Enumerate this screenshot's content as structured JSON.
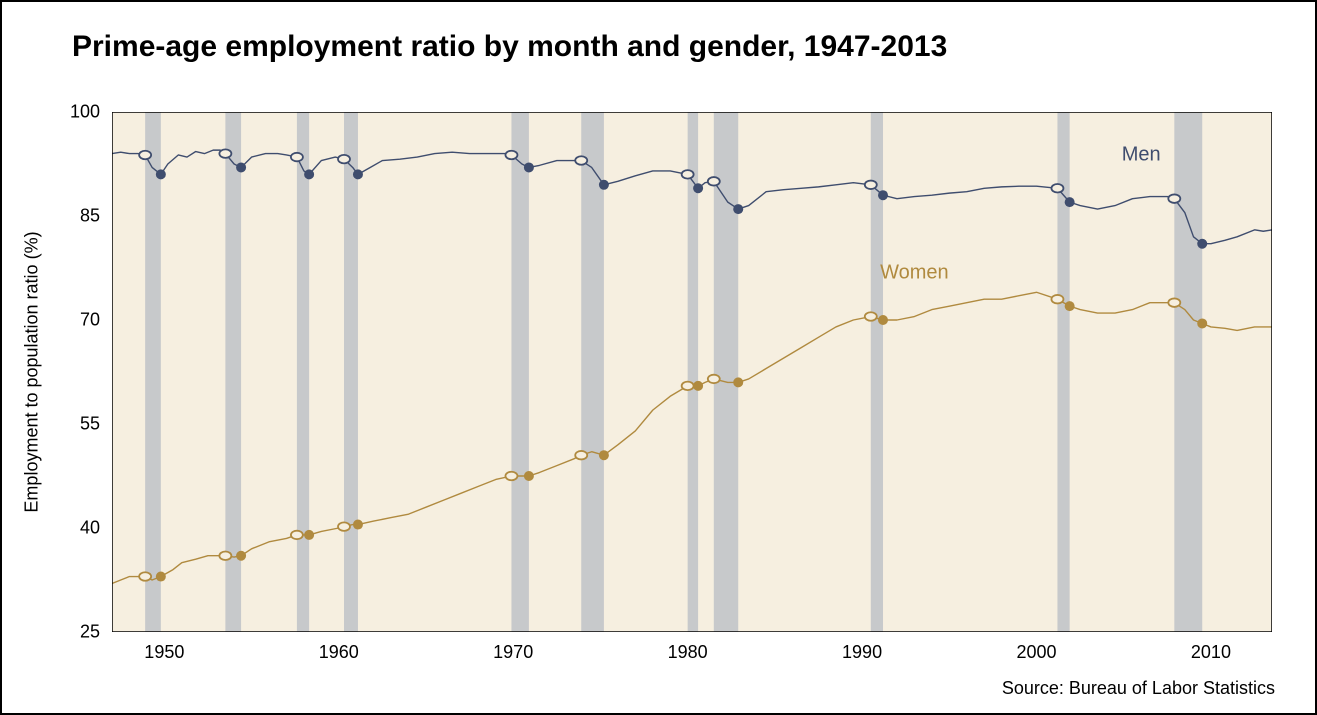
{
  "title": "Prime-age employment ratio by month and gender, 1947-2013",
  "ylabel": "Employment to population ratio (%)",
  "source": "Source: Bureau of Labor Statistics",
  "chart": {
    "type": "line",
    "xlim": [
      1947,
      2013.5
    ],
    "ylim": [
      25,
      100
    ],
    "xticks": [
      1950,
      1960,
      1970,
      1980,
      1990,
      2000,
      2010
    ],
    "yticks": [
      25,
      40,
      55,
      70,
      85,
      100
    ],
    "plot_bg": "#f6efe0",
    "outer_bg": "#ffffff",
    "axis_color": "#000000",
    "band_color": "#c7c9cb",
    "line_width": 1.4,
    "marker_radius": 5,
    "tick_fontsize": 18,
    "title_fontsize": 30,
    "recession_bands": [
      [
        1948.9,
        1949.8
      ],
      [
        1953.5,
        1954.4
      ],
      [
        1957.6,
        1958.3
      ],
      [
        1960.3,
        1961.1
      ],
      [
        1969.9,
        1970.9
      ],
      [
        1973.9,
        1975.2
      ],
      [
        1980.0,
        1980.6
      ],
      [
        1981.5,
        1982.9
      ],
      [
        1990.5,
        1991.2
      ],
      [
        2001.2,
        2001.9
      ],
      [
        2007.9,
        2009.5
      ]
    ],
    "series": {
      "men": {
        "label": "Men",
        "label_pos": [
          2006,
          93
        ],
        "color": "#3f4d6e",
        "data": [
          [
            1947.0,
            94.0
          ],
          [
            1947.5,
            94.2
          ],
          [
            1948.0,
            94.0
          ],
          [
            1948.5,
            94.0
          ],
          [
            1948.9,
            93.8
          ],
          [
            1949.3,
            92.0
          ],
          [
            1949.8,
            91.0
          ],
          [
            1950.2,
            92.5
          ],
          [
            1950.8,
            93.8
          ],
          [
            1951.3,
            93.5
          ],
          [
            1951.8,
            94.3
          ],
          [
            1952.3,
            94.0
          ],
          [
            1952.8,
            94.5
          ],
          [
            1953.2,
            94.5
          ],
          [
            1953.5,
            94.0
          ],
          [
            1954.0,
            92.5
          ],
          [
            1954.4,
            92.0
          ],
          [
            1955.0,
            93.5
          ],
          [
            1955.8,
            94.0
          ],
          [
            1956.5,
            94.0
          ],
          [
            1957.0,
            93.8
          ],
          [
            1957.6,
            93.5
          ],
          [
            1958.0,
            91.5
          ],
          [
            1958.3,
            91.0
          ],
          [
            1959.0,
            93.0
          ],
          [
            1959.8,
            93.5
          ],
          [
            1960.3,
            93.2
          ],
          [
            1960.8,
            92.0
          ],
          [
            1961.1,
            91.0
          ],
          [
            1961.8,
            92.0
          ],
          [
            1962.5,
            93.0
          ],
          [
            1963.5,
            93.2
          ],
          [
            1964.5,
            93.5
          ],
          [
            1965.5,
            94.0
          ],
          [
            1966.5,
            94.2
          ],
          [
            1967.5,
            94.0
          ],
          [
            1968.5,
            94.0
          ],
          [
            1969.5,
            94.0
          ],
          [
            1969.9,
            93.8
          ],
          [
            1970.5,
            92.5
          ],
          [
            1970.9,
            92.0
          ],
          [
            1971.5,
            92.3
          ],
          [
            1972.5,
            93.0
          ],
          [
            1973.5,
            93.0
          ],
          [
            1973.9,
            93.0
          ],
          [
            1974.5,
            92.0
          ],
          [
            1975.2,
            89.5
          ],
          [
            1976.0,
            90.0
          ],
          [
            1977.0,
            90.8
          ],
          [
            1978.0,
            91.5
          ],
          [
            1979.0,
            91.5
          ],
          [
            1980.0,
            91.0
          ],
          [
            1980.6,
            89.0
          ],
          [
            1981.0,
            89.8
          ],
          [
            1981.5,
            90.0
          ],
          [
            1982.3,
            87.0
          ],
          [
            1982.9,
            86.0
          ],
          [
            1983.5,
            86.5
          ],
          [
            1984.5,
            88.5
          ],
          [
            1985.5,
            88.8
          ],
          [
            1986.5,
            89.0
          ],
          [
            1987.5,
            89.2
          ],
          [
            1988.5,
            89.5
          ],
          [
            1989.5,
            89.8
          ],
          [
            1990.5,
            89.5
          ],
          [
            1991.2,
            88.0
          ],
          [
            1992.0,
            87.5
          ],
          [
            1993.0,
            87.8
          ],
          [
            1994.0,
            88.0
          ],
          [
            1995.0,
            88.3
          ],
          [
            1996.0,
            88.5
          ],
          [
            1997.0,
            89.0
          ],
          [
            1998.0,
            89.2
          ],
          [
            1999.0,
            89.3
          ],
          [
            2000.0,
            89.3
          ],
          [
            2001.2,
            89.0
          ],
          [
            2001.9,
            87.0
          ],
          [
            2002.5,
            86.5
          ],
          [
            2003.5,
            86.0
          ],
          [
            2004.5,
            86.5
          ],
          [
            2005.5,
            87.5
          ],
          [
            2006.5,
            87.8
          ],
          [
            2007.5,
            87.8
          ],
          [
            2007.9,
            87.5
          ],
          [
            2008.5,
            85.5
          ],
          [
            2009.0,
            82.0
          ],
          [
            2009.5,
            81.0
          ],
          [
            2010.0,
            81.0
          ],
          [
            2010.8,
            81.5
          ],
          [
            2011.5,
            82.0
          ],
          [
            2012.5,
            83.0
          ],
          [
            2013.0,
            82.8
          ],
          [
            2013.5,
            83.0
          ]
        ],
        "markers_open": [
          [
            1948.9,
            93.8
          ],
          [
            1953.5,
            94.0
          ],
          [
            1957.6,
            93.5
          ],
          [
            1960.3,
            93.2
          ],
          [
            1969.9,
            93.8
          ],
          [
            1973.9,
            93.0
          ],
          [
            1980.0,
            91.0
          ],
          [
            1981.5,
            90.0
          ],
          [
            1990.5,
            89.5
          ],
          [
            2001.2,
            89.0
          ],
          [
            2007.9,
            87.5
          ]
        ],
        "markers_closed": [
          [
            1949.8,
            91.0
          ],
          [
            1954.4,
            92.0
          ],
          [
            1958.3,
            91.0
          ],
          [
            1961.1,
            91.0
          ],
          [
            1970.9,
            92.0
          ],
          [
            1975.2,
            89.5
          ],
          [
            1980.6,
            89.0
          ],
          [
            1982.9,
            86.0
          ],
          [
            1991.2,
            88.0
          ],
          [
            2001.9,
            87.0
          ],
          [
            2009.5,
            81.0
          ]
        ]
      },
      "women": {
        "label": "Women",
        "label_pos": [
          1993,
          76
        ],
        "color": "#b08a3f",
        "data": [
          [
            1947.0,
            32.0
          ],
          [
            1947.5,
            32.5
          ],
          [
            1948.0,
            33.0
          ],
          [
            1948.5,
            33.0
          ],
          [
            1948.9,
            33.0
          ],
          [
            1949.3,
            32.5
          ],
          [
            1949.8,
            33.0
          ],
          [
            1950.5,
            34.0
          ],
          [
            1951.0,
            35.0
          ],
          [
            1951.8,
            35.5
          ],
          [
            1952.5,
            36.0
          ],
          [
            1953.2,
            36.0
          ],
          [
            1953.5,
            36.0
          ],
          [
            1954.0,
            35.8
          ],
          [
            1954.4,
            36.0
          ],
          [
            1955.0,
            37.0
          ],
          [
            1956.0,
            38.0
          ],
          [
            1957.0,
            38.5
          ],
          [
            1957.6,
            39.0
          ],
          [
            1958.0,
            39.0
          ],
          [
            1958.3,
            39.0
          ],
          [
            1959.0,
            39.5
          ],
          [
            1960.0,
            40.0
          ],
          [
            1960.3,
            40.2
          ],
          [
            1960.8,
            40.5
          ],
          [
            1961.1,
            40.5
          ],
          [
            1962.0,
            41.0
          ],
          [
            1963.0,
            41.5
          ],
          [
            1964.0,
            42.0
          ],
          [
            1965.0,
            43.0
          ],
          [
            1966.0,
            44.0
          ],
          [
            1967.0,
            45.0
          ],
          [
            1968.0,
            46.0
          ],
          [
            1969.0,
            47.0
          ],
          [
            1969.9,
            47.5
          ],
          [
            1970.5,
            47.5
          ],
          [
            1970.9,
            47.5
          ],
          [
            1971.5,
            48.0
          ],
          [
            1972.5,
            49.0
          ],
          [
            1973.5,
            50.0
          ],
          [
            1973.9,
            50.5
          ],
          [
            1974.5,
            51.0
          ],
          [
            1975.2,
            50.5
          ],
          [
            1976.0,
            52.0
          ],
          [
            1977.0,
            54.0
          ],
          [
            1978.0,
            57.0
          ],
          [
            1979.0,
            59.0
          ],
          [
            1980.0,
            60.5
          ],
          [
            1980.6,
            60.5
          ],
          [
            1981.0,
            61.0
          ],
          [
            1981.5,
            61.5
          ],
          [
            1982.3,
            61.0
          ],
          [
            1982.9,
            61.0
          ],
          [
            1983.5,
            61.5
          ],
          [
            1984.5,
            63.0
          ],
          [
            1985.5,
            64.5
          ],
          [
            1986.5,
            66.0
          ],
          [
            1987.5,
            67.5
          ],
          [
            1988.5,
            69.0
          ],
          [
            1989.5,
            70.0
          ],
          [
            1990.5,
            70.5
          ],
          [
            1991.2,
            70.0
          ],
          [
            1992.0,
            70.0
          ],
          [
            1993.0,
            70.5
          ],
          [
            1994.0,
            71.5
          ],
          [
            1995.0,
            72.0
          ],
          [
            1996.0,
            72.5
          ],
          [
            1997.0,
            73.0
          ],
          [
            1998.0,
            73.0
          ],
          [
            1999.0,
            73.5
          ],
          [
            2000.0,
            74.0
          ],
          [
            2001.2,
            73.0
          ],
          [
            2001.9,
            72.0
          ],
          [
            2002.5,
            71.5
          ],
          [
            2003.5,
            71.0
          ],
          [
            2004.5,
            71.0
          ],
          [
            2005.5,
            71.5
          ],
          [
            2006.5,
            72.5
          ],
          [
            2007.5,
            72.5
          ],
          [
            2007.9,
            72.5
          ],
          [
            2008.5,
            71.5
          ],
          [
            2009.0,
            70.0
          ],
          [
            2009.5,
            69.5
          ],
          [
            2010.0,
            69.0
          ],
          [
            2010.8,
            68.8
          ],
          [
            2011.5,
            68.5
          ],
          [
            2012.5,
            69.0
          ],
          [
            2013.0,
            69.0
          ],
          [
            2013.5,
            69.0
          ]
        ],
        "markers_open": [
          [
            1948.9,
            33.0
          ],
          [
            1953.5,
            36.0
          ],
          [
            1957.6,
            39.0
          ],
          [
            1960.3,
            40.2
          ],
          [
            1969.9,
            47.5
          ],
          [
            1973.9,
            50.5
          ],
          [
            1980.0,
            60.5
          ],
          [
            1981.5,
            61.5
          ],
          [
            1990.5,
            70.5
          ],
          [
            2001.2,
            73.0
          ],
          [
            2007.9,
            72.5
          ]
        ],
        "markers_closed": [
          [
            1949.8,
            33.0
          ],
          [
            1954.4,
            36.0
          ],
          [
            1958.3,
            39.0
          ],
          [
            1961.1,
            40.5
          ],
          [
            1970.9,
            47.5
          ],
          [
            1975.2,
            50.5
          ],
          [
            1980.6,
            60.5
          ],
          [
            1982.9,
            61.0
          ],
          [
            1991.2,
            70.0
          ],
          [
            2001.9,
            72.0
          ],
          [
            2009.5,
            69.5
          ]
        ]
      }
    }
  }
}
